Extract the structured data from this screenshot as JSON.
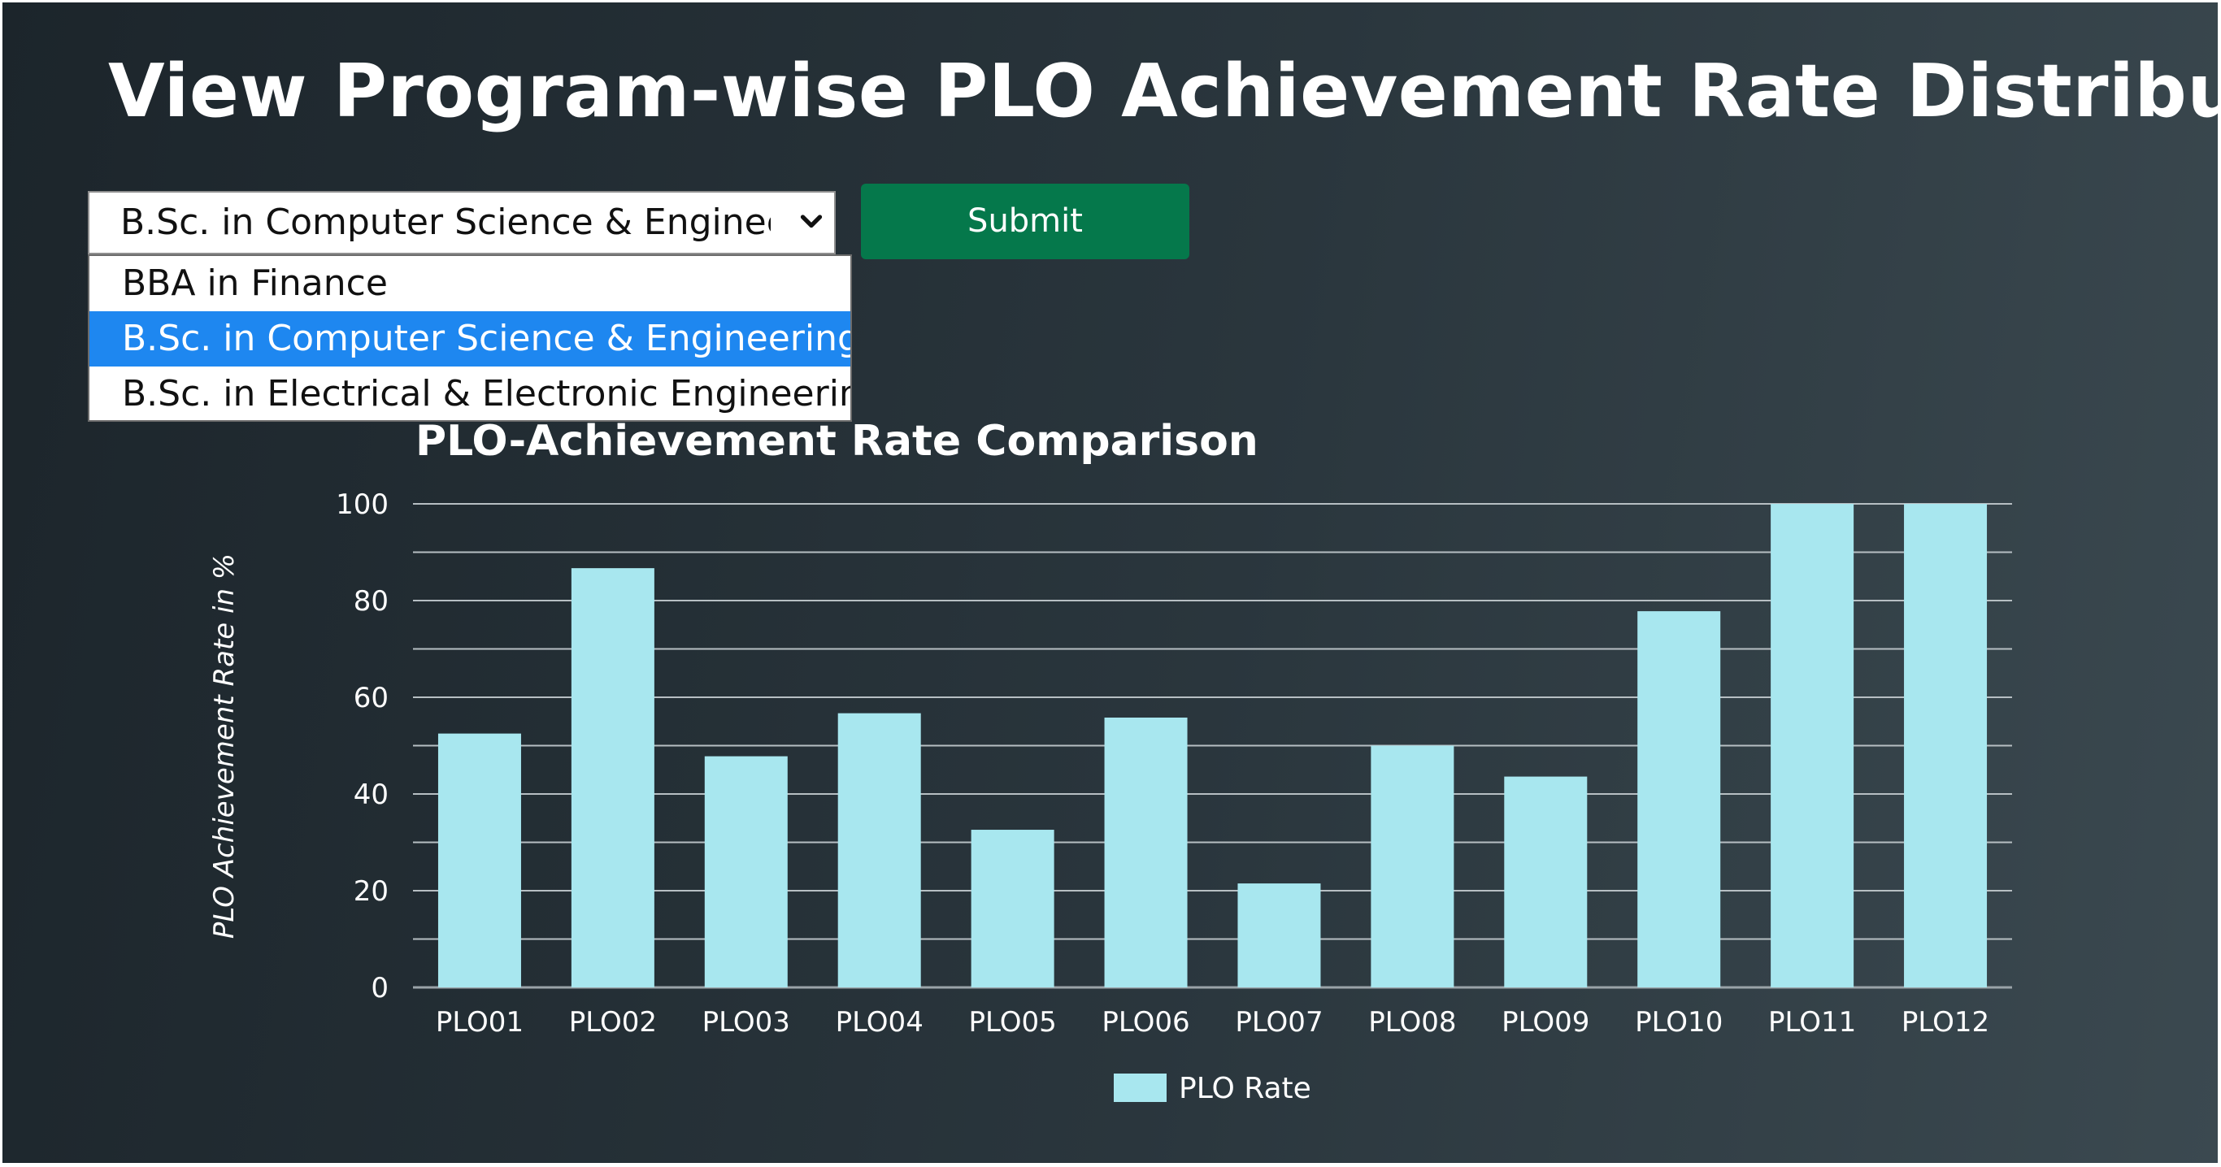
{
  "page": {
    "title": "View Program-wise PLO Achievement Rate Distribution:"
  },
  "program_select": {
    "selected": "B.Sc. in Computer Science & Engineer",
    "options": [
      "BBA in Finance",
      "B.Sc. in Computer Science & Engineering",
      "B.Sc. in Electrical & Electronic Engineering"
    ],
    "highlighted_index": 1
  },
  "submit_label": "Submit",
  "colors": {
    "submit_bg": "#05784b",
    "bar_fill": "#a8e7ef",
    "option_highlight": "#1e87f0"
  },
  "chart_data": {
    "type": "bar",
    "title": "PLO-Achievement Rate Comparison",
    "ylabel": "PLO Achievement Rate in %",
    "xlabel": "",
    "categories": [
      "PLO01",
      "PLO02",
      "PLO03",
      "PLO04",
      "PLO05",
      "PLO06",
      "PLO07",
      "PLO08",
      "PLO09",
      "PLO10",
      "PLO11",
      "PLO12"
    ],
    "series": [
      {
        "name": "PLO Rate",
        "values": [
          52.5,
          86.7,
          47.8,
          56.7,
          32.6,
          55.8,
          21.5,
          50,
          43.6,
          77.8,
          100,
          100
        ]
      }
    ],
    "ylim": [
      0,
      100
    ],
    "yticks": [
      "0",
      "20",
      "40",
      "60",
      "80",
      "100"
    ],
    "grid": true,
    "legend": "bottom"
  }
}
